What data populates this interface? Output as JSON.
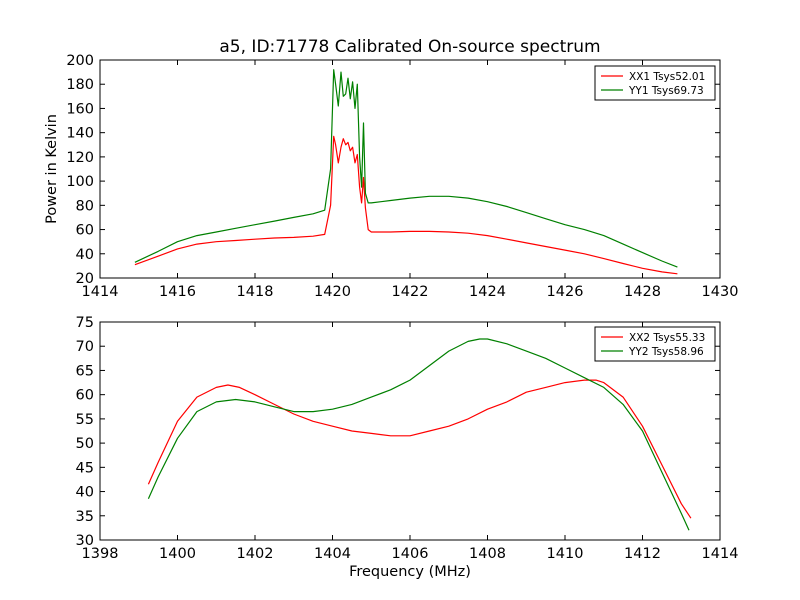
{
  "chart_data": [
    {
      "type": "line",
      "title": "a5, ID:71778 Calibrated On-source spectrum",
      "xlabel": "",
      "ylabel": "Power in Kelvin",
      "xlim": [
        1414,
        1430
      ],
      "ylim": [
        20,
        200
      ],
      "xticks": [
        "1414",
        "1416",
        "1418",
        "1420",
        "1422",
        "1424",
        "1426",
        "1428",
        "1430"
      ],
      "yticks": [
        "20",
        "40",
        "60",
        "80",
        "100",
        "120",
        "140",
        "160",
        "180",
        "200"
      ],
      "legend_position": "top-right",
      "grid": false,
      "series": [
        {
          "name": "XX1 Tsys52.01",
          "color": "#ff0000",
          "x": [
            1414.9,
            1415.5,
            1416.0,
            1416.5,
            1417.0,
            1417.5,
            1418.0,
            1418.5,
            1419.0,
            1419.5,
            1419.8,
            1419.95,
            1420.03,
            1420.08,
            1420.15,
            1420.22,
            1420.28,
            1420.34,
            1420.4,
            1420.46,
            1420.52,
            1420.58,
            1420.64,
            1420.7,
            1420.75,
            1420.8,
            1420.85,
            1420.92,
            1421.0,
            1421.5,
            1422.0,
            1422.5,
            1423.0,
            1423.5,
            1424.0,
            1424.5,
            1425.0,
            1425.5,
            1426.0,
            1426.5,
            1427.0,
            1427.5,
            1428.0,
            1428.5,
            1428.9
          ],
          "y": [
            31,
            38,
            44,
            48,
            50,
            51,
            52,
            53,
            53.5,
            54.5,
            56,
            80,
            137,
            130,
            115,
            128,
            135,
            130,
            132,
            125,
            128,
            115,
            122,
            95,
            82,
            103,
            78,
            60,
            58,
            58,
            58.5,
            58.5,
            58,
            57,
            55,
            52,
            49,
            46,
            43,
            40,
            36,
            32,
            28,
            25,
            23.5
          ]
        },
        {
          "name": "YY1 Tsys69.73",
          "color": "#008000",
          "x": [
            1414.9,
            1415.5,
            1416.0,
            1416.5,
            1417.0,
            1417.5,
            1418.0,
            1418.5,
            1419.0,
            1419.5,
            1419.8,
            1419.95,
            1420.03,
            1420.08,
            1420.15,
            1420.22,
            1420.28,
            1420.34,
            1420.4,
            1420.46,
            1420.52,
            1420.58,
            1420.64,
            1420.7,
            1420.75,
            1420.8,
            1420.85,
            1420.92,
            1421.0,
            1421.5,
            1422.0,
            1422.5,
            1423.0,
            1423.5,
            1424.0,
            1424.5,
            1425.0,
            1425.5,
            1426.0,
            1426.5,
            1427.0,
            1427.5,
            1428.0,
            1428.5,
            1428.9
          ],
          "y": [
            33,
            42,
            50,
            55,
            58,
            61,
            64,
            67,
            70,
            73,
            76,
            110,
            192,
            180,
            162,
            190,
            170,
            172,
            185,
            168,
            182,
            160,
            180,
            120,
            95,
            148,
            90,
            82,
            82,
            84,
            86,
            87.5,
            87.5,
            86,
            83,
            79,
            74,
            69,
            64,
            60,
            55,
            48,
            41,
            34,
            29
          ]
        }
      ]
    },
    {
      "type": "line",
      "title": "",
      "xlabel": "Frequency (MHz)",
      "ylabel": "",
      "xlim": [
        1398,
        1414
      ],
      "ylim": [
        30,
        75
      ],
      "xticks": [
        "1398",
        "1400",
        "1402",
        "1404",
        "1406",
        "1408",
        "1410",
        "1412",
        "1414"
      ],
      "yticks": [
        "30",
        "35",
        "40",
        "45",
        "50",
        "55",
        "60",
        "65",
        "70",
        "75"
      ],
      "legend_position": "top-right",
      "grid": false,
      "series": [
        {
          "name": "XX2 Tsys55.33",
          "color": "#ff0000",
          "x": [
            1399.25,
            1399.5,
            1400.0,
            1400.5,
            1401.0,
            1401.3,
            1401.6,
            1402.0,
            1402.5,
            1403.0,
            1403.5,
            1404.0,
            1404.5,
            1405.0,
            1405.5,
            1406.0,
            1406.5,
            1407.0,
            1407.5,
            1408.0,
            1408.5,
            1409.0,
            1409.5,
            1410.0,
            1410.5,
            1410.8,
            1411.0,
            1411.5,
            1412.0,
            1412.5,
            1413.0,
            1413.25
          ],
          "y": [
            41.5,
            46,
            54.5,
            59.5,
            61.5,
            62,
            61.5,
            60,
            58,
            56,
            54.5,
            53.5,
            52.5,
            52,
            51.5,
            51.5,
            52.5,
            53.5,
            55,
            57,
            58.5,
            60.5,
            61.5,
            62.5,
            63,
            63,
            62.5,
            59.5,
            53.5,
            45.5,
            37.5,
            34.5
          ]
        },
        {
          "name": "YY2 Tsys58.96",
          "color": "#008000",
          "x": [
            1399.25,
            1399.5,
            1400.0,
            1400.5,
            1401.0,
            1401.5,
            1402.0,
            1402.5,
            1403.0,
            1403.5,
            1404.0,
            1404.5,
            1405.0,
            1405.5,
            1406.0,
            1406.5,
            1407.0,
            1407.5,
            1407.8,
            1408.0,
            1408.5,
            1409.0,
            1409.5,
            1410.0,
            1410.5,
            1411.0,
            1411.5,
            1412.0,
            1412.5,
            1413.0,
            1413.2
          ],
          "y": [
            38.5,
            43,
            51,
            56.5,
            58.5,
            59,
            58.5,
            57.5,
            56.5,
            56.5,
            57,
            58,
            59.5,
            61,
            63,
            66,
            69,
            71,
            71.5,
            71.5,
            70.5,
            69,
            67.5,
            65.5,
            63.5,
            61.5,
            58,
            52.5,
            44,
            35.5,
            32
          ]
        }
      ]
    }
  ]
}
